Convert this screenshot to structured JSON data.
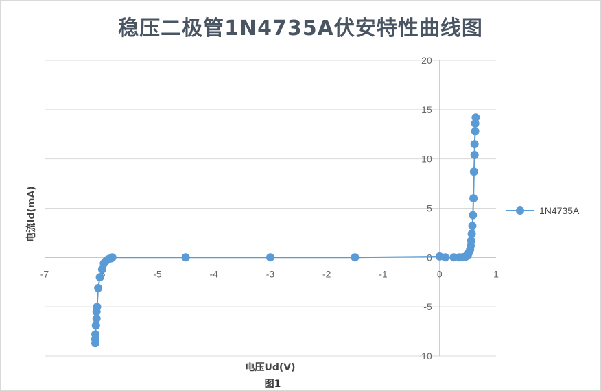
{
  "chart_data": {
    "type": "scatter",
    "title": "稳压二极管1N4735A伏安特性曲线图",
    "xlabel": "电压Ud(V)",
    "ylabel": "电流Id(mA)",
    "xlim": [
      -7,
      1
    ],
    "ylim": [
      -10,
      20
    ],
    "x_ticks": [
      -7,
      -6,
      -5,
      -4,
      -3,
      -2,
      -1,
      0,
      1
    ],
    "y_ticks": [
      -10,
      -5,
      0,
      5,
      10,
      15,
      20
    ],
    "x_tick_labels": [
      "-7",
      "-6",
      "-5",
      "-4",
      "-3",
      "-2",
      "-1",
      "0",
      "1"
    ],
    "y_tick_labels": [
      "-10",
      "-5",
      "0",
      "5",
      "10",
      "15",
      "20"
    ],
    "grid": "horizontal",
    "legend": "right",
    "series": [
      {
        "name": "1N4735A",
        "color": "#5b9bd5",
        "x": [
          -6.1,
          -6.1,
          -6.1,
          -6.09,
          -6.08,
          -6.08,
          -6.07,
          -6.05,
          -6.02,
          -5.98,
          -5.95,
          -5.92,
          -5.89,
          -5.86,
          -5.83,
          -5.81,
          -5.8,
          -4.5,
          -3.0,
          -1.5,
          0.0,
          0.1,
          0.25,
          0.35,
          0.4,
          0.44,
          0.47,
          0.5,
          0.52,
          0.54,
          0.55,
          0.56,
          0.57,
          0.58,
          0.59,
          0.6,
          0.61,
          0.62,
          0.62,
          0.63,
          0.63,
          0.64
        ],
        "y": [
          -8.7,
          -8.3,
          -7.8,
          -6.9,
          -6.2,
          -5.5,
          -5.0,
          -3.1,
          -2.0,
          -1.2,
          -0.6,
          -0.4,
          -0.25,
          -0.15,
          -0.1,
          -0.05,
          0.0,
          0.0,
          0.0,
          0.0,
          0.1,
          0.0,
          0.0,
          0.0,
          0.0,
          0.05,
          0.1,
          0.25,
          0.5,
          0.8,
          1.2,
          1.7,
          2.4,
          3.2,
          4.3,
          6.0,
          8.7,
          10.4,
          11.5,
          12.8,
          13.6,
          14.2
        ]
      }
    ]
  },
  "caption": "图1"
}
